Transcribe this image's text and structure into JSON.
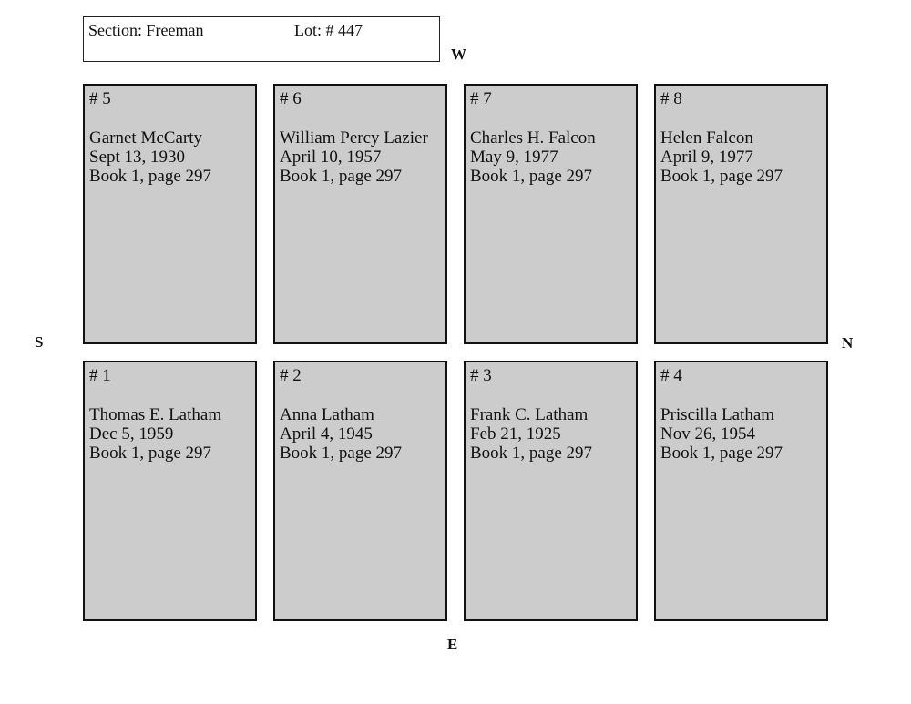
{
  "header": {
    "section": "Section:  Freeman",
    "lot": "Lot: #  447"
  },
  "directions": {
    "west": "W",
    "south": "S",
    "north": "N",
    "east": "E"
  },
  "plots": [
    {
      "number": "# 5",
      "name": "Garnet McCarty",
      "date": "Sept 13, 1930",
      "record": "Book 1, page 297"
    },
    {
      "number": "# 6",
      "name": "William Percy Lazier",
      "date": "April 10, 1957",
      "record": "Book 1, page 297"
    },
    {
      "number": "# 7",
      "name": "Charles H. Falcon",
      "date": "May 9, 1977",
      "record": "Book 1, page 297"
    },
    {
      "number": "# 8",
      "name": "Helen Falcon",
      "date": "April 9, 1977",
      "record": "Book 1, page 297"
    },
    {
      "number": "# 1",
      "name": "Thomas E. Latham",
      "date": "Dec 5, 1959",
      "record": "Book 1, page 297"
    },
    {
      "number": "# 2",
      "name": "Anna Latham",
      "date": "April 4, 1945",
      "record": "Book 1, page 297"
    },
    {
      "number": "# 3",
      "name": "Frank C. Latham",
      "date": "Feb 21, 1925",
      "record": "Book 1, page 297"
    },
    {
      "number": "# 4",
      "name": "Priscilla Latham",
      "date": "Nov 26, 1954",
      "record": "Book 1, page 297"
    }
  ],
  "colors": {
    "plot_fill": "#cccccc",
    "border": "#111111"
  }
}
